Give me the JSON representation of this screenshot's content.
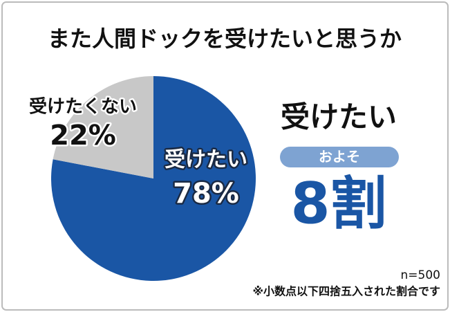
{
  "chart_data": {
    "type": "pie",
    "title": "また人間ドックを受けたいと思うか",
    "categories": [
      "受けたい",
      "受けたくない"
    ],
    "values": [
      78,
      22
    ],
    "value_labels": [
      "78%",
      "22%"
    ],
    "colors": [
      "#1a56a5",
      "#c8c8c8"
    ],
    "annotations": {
      "headline": "受けたい",
      "badge": "およそ",
      "big": "8割",
      "sample": "n=500",
      "note": "※小数点以下四捨五入された割合です"
    }
  }
}
